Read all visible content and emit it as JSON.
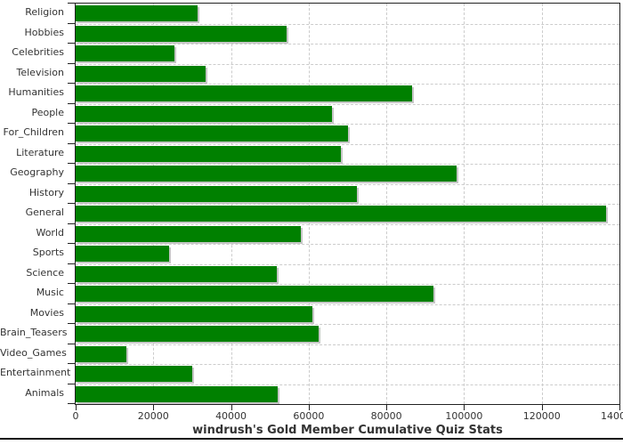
{
  "title": "windrush's Gold Member Cumulative Quiz Stats",
  "colors": {
    "bar": "#008000",
    "bar_shadow": "#c6c6c6",
    "grid": "#cccccc",
    "axis": "#222222",
    "text": "#333333",
    "background": "#ffffff"
  },
  "chart_data": {
    "type": "bar",
    "orientation": "horizontal",
    "title": "windrush's Gold Member Cumulative Quiz Stats",
    "xlabel": "",
    "ylabel": "",
    "grid": true,
    "legend": false,
    "xlim": [
      0,
      140000
    ],
    "x_ticks": [
      0,
      20000,
      40000,
      60000,
      80000,
      100000,
      120000,
      140000
    ],
    "x_tick_labels": [
      "0",
      "20000",
      "40000",
      "60000",
      "80000",
      "100000",
      "120000",
      "140000"
    ],
    "categories": [
      "Religion",
      "Hobbies",
      "Celebrities",
      "Television",
      "Humanities",
      "People",
      "For_Children",
      "Literature",
      "Geography",
      "History",
      "General",
      "World",
      "Sports",
      "Science",
      "Music",
      "Movies",
      "Brain_Teasers",
      "Video_Games",
      "Entertainment",
      "Animals"
    ],
    "values": [
      31500,
      54250,
      25500,
      33500,
      86500,
      66000,
      70000,
      68250,
      98000,
      72500,
      136500,
      58000,
      24000,
      51750,
      92000,
      61000,
      62500,
      13000,
      30000,
      52000
    ]
  }
}
